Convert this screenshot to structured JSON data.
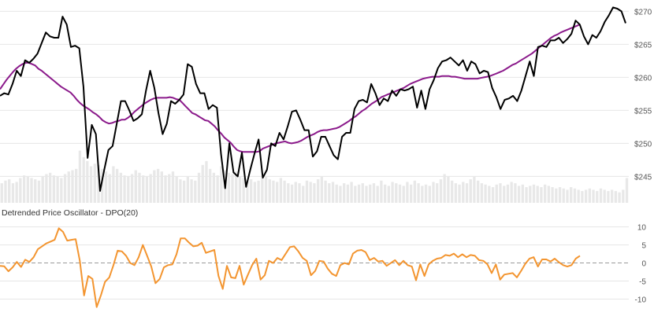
{
  "colors": {
    "price": "#000000",
    "sma": "#8b1a8b",
    "volume": "#e8e8e8",
    "dpo": "#f39530",
    "grid": "#e6e6e6",
    "zero_line": "#9a9a9a",
    "axis_text": "#555555"
  },
  "chart_data": [
    {
      "type": "line",
      "name": "price-panel",
      "ylim": [
        241,
        271
      ],
      "y_ticks": [
        245,
        250,
        255,
        260,
        265,
        270
      ],
      "y_tick_labels": [
        "$245",
        "$250",
        "$255",
        "$260",
        "$265",
        "$270"
      ],
      "grid": true,
      "series": [
        {
          "values": [
            257.2,
            257.6,
            257.4,
            259.0,
            261.0,
            260.2,
            262.6,
            262.2,
            262.8,
            263.6,
            265.2,
            266.8,
            266.2,
            266.0,
            266.0,
            269.2,
            268.0,
            264.6,
            264.8,
            264.4,
            258.6,
            247.8,
            252.8,
            251.4,
            242.8,
            246.0,
            249.0,
            249.6,
            253.0,
            256.4,
            256.4,
            255.0,
            253.4,
            253.8,
            254.4,
            258.0,
            261.0,
            258.4,
            254.6,
            251.4,
            253.0,
            256.4,
            256.0,
            256.6,
            257.4,
            262.0,
            261.6,
            259.0,
            257.6,
            257.6,
            255.2,
            255.8,
            255.4,
            248.4,
            243.2,
            250.0,
            245.6,
            245.0,
            248.6,
            243.4,
            246.0,
            248.4,
            250.6,
            244.8,
            246.0,
            250.0,
            249.6,
            251.6,
            250.6,
            252.6,
            254.8,
            255.0,
            253.6,
            252.0,
            252.0,
            248.0,
            248.8,
            251.0,
            251.0,
            249.6,
            248.2,
            247.6,
            251.0,
            251.6,
            251.6,
            255.2,
            256.4,
            256.6,
            256.2,
            259.0,
            257.6,
            255.8,
            256.8,
            256.4,
            258.0,
            257.2,
            258.2,
            258.0,
            258.2,
            258.6,
            255.4,
            258.0,
            255.2,
            258.2,
            259.6,
            261.4,
            262.4,
            262.6,
            263.0,
            262.4,
            261.8,
            262.6,
            261.0,
            262.4,
            262.0,
            260.6,
            261.0,
            260.8,
            258.4,
            257.0,
            255.2,
            256.6,
            256.8,
            257.2,
            256.4,
            258.0,
            260.2,
            262.4,
            260.2,
            264.6,
            264.8,
            264.6,
            265.6,
            265.6,
            266.0,
            265.2,
            265.8,
            266.6,
            268.6,
            268.0,
            266.2,
            265.0,
            266.4,
            266.0,
            267.0,
            268.4,
            269.4,
            270.6,
            270.4,
            270.0,
            268.2
          ]
        },
        {
          "values": [
            258.2,
            258.9,
            259.6,
            260.2,
            260.8,
            261.3,
            261.7,
            262.0,
            262.2,
            262.2,
            262.0,
            261.8,
            261.3,
            261.0,
            260.6,
            260.2,
            259.8,
            259.4,
            259.0,
            258.6,
            258.3,
            258.0,
            257.7,
            257.2,
            256.6,
            256.1,
            255.7,
            255.4,
            255.1,
            254.7,
            254.4,
            254.0,
            253.5,
            253.2,
            253.0,
            253.1,
            253.3,
            253.4,
            253.6,
            253.6,
            253.9,
            254.3,
            254.8,
            255.2,
            255.6,
            256.0,
            256.3,
            256.6,
            256.8,
            256.9,
            256.9,
            256.9,
            256.9,
            257.0,
            256.9,
            256.7,
            256.6,
            256.1,
            255.6,
            255.1,
            254.6,
            254.4,
            254.1,
            253.8,
            253.5,
            253.4,
            253.0,
            252.6,
            252.0,
            251.5,
            250.9,
            250.5,
            250.1,
            249.5,
            249.0,
            248.8,
            248.7,
            248.7,
            248.7,
            248.7,
            248.7,
            248.8,
            249.2,
            249.4,
            249.6,
            249.8,
            250.0,
            250.1,
            250.2,
            250.3,
            250.1,
            250.0,
            250.1,
            250.2,
            250.4,
            250.7,
            251.0,
            251.2,
            251.4,
            251.7,
            251.9,
            252.0,
            252.0,
            252.1,
            252.2,
            252.3,
            252.5,
            252.8,
            253.1,
            253.4,
            253.8,
            254.1,
            254.5,
            254.9,
            255.2,
            255.6,
            256.0,
            256.3,
            256.6,
            257.0,
            257.2,
            257.4,
            257.6,
            257.8,
            258.0,
            258.2,
            258.4,
            258.7,
            259.0,
            259.2,
            259.4,
            259.6,
            259.8,
            259.9,
            260.0,
            260.1,
            260.1,
            260.1,
            260.2,
            260.2,
            260.2,
            260.1,
            260.1,
            260.0,
            259.9,
            259.8,
            259.8,
            259.8,
            259.8,
            259.8,
            259.9,
            260.0,
            260.1,
            260.2,
            260.4,
            260.6,
            260.8,
            261.0,
            261.3,
            261.6,
            261.9,
            262.1,
            262.4,
            262.7,
            263.0,
            263.3,
            263.6,
            264.0,
            264.4,
            264.8,
            265.2,
            265.6,
            266.0,
            266.3,
            266.5,
            266.8,
            267.0,
            267.2,
            267.4,
            267.6,
            267.8,
            268.0
          ]
        }
      ]
    },
    {
      "type": "bar",
      "name": "volume",
      "ylim": [
        0,
        100
      ],
      "values": [
        30,
        34,
        36,
        30,
        32,
        38,
        42,
        40,
        38,
        36,
        34,
        40,
        44,
        46,
        42,
        40,
        38,
        44,
        48,
        50,
        52,
        80,
        70,
        64,
        56,
        60,
        58,
        52,
        48,
        44,
        56,
        52,
        46,
        42,
        40,
        44,
        50,
        46,
        42,
        40,
        44,
        50,
        52,
        48,
        42,
        44,
        48,
        40,
        36,
        34,
        40,
        36,
        34,
        46,
        58,
        64,
        52,
        46,
        42,
        56,
        50,
        46,
        44,
        48,
        40,
        38,
        34,
        36,
        32,
        34,
        38,
        40,
        36,
        34,
        32,
        38,
        34,
        30,
        28,
        32,
        30,
        26,
        34,
        32,
        30,
        36,
        40,
        34,
        30,
        32,
        28,
        26,
        30,
        28,
        32,
        26,
        28,
        30,
        26,
        28,
        30,
        26,
        34,
        28,
        26,
        32,
        30,
        28,
        26,
        32,
        28,
        34,
        30,
        26,
        28,
        26,
        32,
        30,
        36,
        44,
        40,
        34,
        30,
        28,
        32,
        30,
        36,
        40,
        34,
        30,
        28,
        26,
        24,
        28,
        30,
        26,
        28,
        32,
        30,
        26,
        28,
        24,
        26,
        28,
        26,
        24,
        28,
        26,
        24,
        22,
        24,
        22,
        20,
        24,
        22,
        20,
        18,
        20,
        22,
        20,
        18,
        22,
        20,
        18,
        20,
        18,
        16,
        20,
        38
      ]
    },
    {
      "type": "line",
      "name": "dpo-panel",
      "title": "Detrended Price Oscillator - DPO(20)",
      "ylim": [
        -12.5,
        11
      ],
      "y_ticks": [
        -10,
        -5,
        0,
        5,
        10
      ],
      "y_tick_labels": [
        "-10",
        "-5",
        "0",
        "5",
        "10"
      ],
      "grid": true,
      "series": [
        {
          "values": [
            -0.8,
            -0.9,
            -2.3,
            -1.2,
            0.3,
            -1.1,
            0.9,
            0.3,
            1.6,
            3.8,
            4.6,
            5.4,
            5.9,
            6.4,
            9.6,
            8.6,
            6.2,
            6.4,
            6.6,
            0.6,
            -9.0,
            -3.6,
            -4.4,
            -12.2,
            -9.0,
            -5.2,
            -4.0,
            -0.6,
            3.4,
            3.2,
            2.0,
            0.0,
            -0.6,
            1.6,
            5.0,
            2.0,
            -1.0,
            -5.6,
            -4.4,
            -1.2,
            -0.6,
            -0.4,
            2.4,
            6.8,
            6.8,
            5.6,
            4.6,
            4.8,
            5.6,
            2.8,
            3.2,
            3.6,
            -3.6,
            -7.2,
            -0.8,
            -4.0,
            -4.2,
            -0.8,
            -6.0,
            -3.2,
            -0.6,
            1.2,
            -4.6,
            -3.4,
            0.6,
            0.0,
            1.4,
            0.8,
            2.6,
            4.4,
            4.6,
            3.2,
            1.4,
            0.6,
            -3.4,
            -2.2,
            0.6,
            0.4,
            -1.6,
            -3.0,
            -3.6,
            -0.6,
            0.0,
            -0.4,
            2.6,
            3.4,
            3.6,
            3.0,
            0.8,
            1.4,
            0.4,
            0.6,
            -0.8,
            0.0,
            0.8,
            -0.6,
            0.6,
            -0.6,
            -1.0,
            -4.8,
            -0.4,
            -3.6,
            -0.4,
            0.6,
            1.2,
            1.4,
            2.2,
            2.0,
            2.6,
            1.6,
            2.4,
            1.6,
            2.2,
            2.0,
            0.8,
            0.6,
            -0.4,
            -2.8,
            -0.4,
            -4.6,
            -3.2,
            -3.0,
            -2.8,
            -4.0,
            -2.2,
            -0.2,
            1.2,
            1.6,
            -1.0,
            1.0,
            1.0,
            0.4,
            1.2,
            0.2,
            -0.6,
            -1.0,
            -0.6,
            1.2,
            2.0
          ]
        }
      ]
    }
  ]
}
